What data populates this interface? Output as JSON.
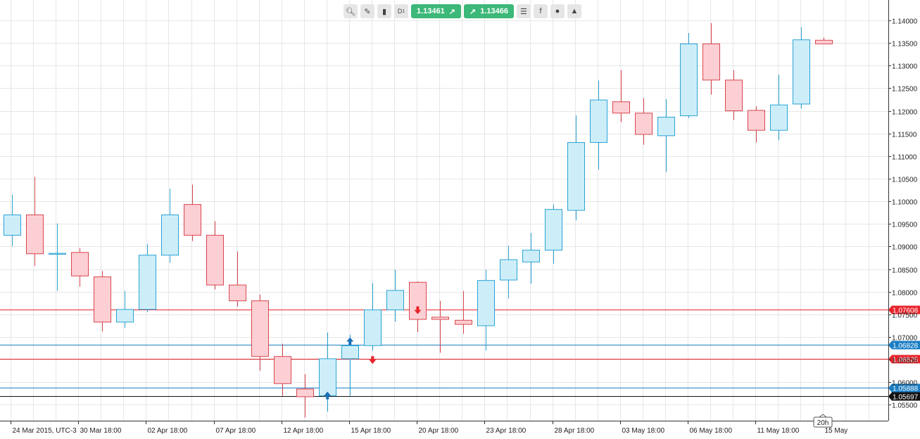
{
  "toolbar": {
    "timeframe": "D",
    "timeframe_sub": "1",
    "bid_price": "1.13461",
    "ask_price": "1.13466",
    "arrow_glyph": "↗",
    "icons": [
      "zoom-icon",
      "chart-settings-icon",
      "candles-icon",
      "timeframe-icon",
      "bid-button",
      "ask-button",
      "order-list-icon",
      "facebook-icon",
      "palette-icon",
      "trader-icon"
    ]
  },
  "chart_data": {
    "type": "candlestick",
    "x_labels": [
      "24 Mar 2015, UTC-3",
      "30 Mar 18:00",
      "02 Apr 18:00",
      "07 Apr 18:00",
      "12 Apr 18:00",
      "15 Apr 18:00",
      "20 Apr 18:00",
      "23 Apr 18:00",
      "28 Apr 18:00",
      "03 May 18:00",
      "06 May 18:00",
      "11 May 18:00",
      "15 May"
    ],
    "y_ticks": [
      "1.05500",
      "1.06000",
      "1.06500",
      "1.07000",
      "1.07500",
      "1.08000",
      "1.08500",
      "1.09000",
      "1.09500",
      "1.10000",
      "1.10500",
      "1.11000",
      "1.11500",
      "1.12000",
      "1.12500",
      "1.13000",
      "1.13500",
      "1.14000"
    ],
    "ylim": [
      1.0515,
      1.1445
    ],
    "candles": [
      {
        "o": 1.0925,
        "h": 1.1015,
        "l": 1.0901,
        "c": 1.097
      },
      {
        "o": 1.097,
        "h": 1.1054,
        "l": 1.0857,
        "c": 1.0884
      },
      {
        "o": 1.0883,
        "h": 1.0951,
        "l": 1.0802,
        "c": 1.0885
      },
      {
        "o": 1.0887,
        "h": 1.0897,
        "l": 1.0811,
        "c": 1.0835
      },
      {
        "o": 1.0833,
        "h": 1.0846,
        "l": 1.0712,
        "c": 1.0733
      },
      {
        "o": 1.0733,
        "h": 1.0802,
        "l": 1.072,
        "c": 1.0761
      },
      {
        "o": 1.0761,
        "h": 1.0906,
        "l": 1.0755,
        "c": 1.0881
      },
      {
        "o": 1.0881,
        "h": 1.1028,
        "l": 1.0864,
        "c": 1.097
      },
      {
        "o": 1.0993,
        "h": 1.1037,
        "l": 1.0912,
        "c": 1.0925
      },
      {
        "o": 1.0925,
        "h": 1.0956,
        "l": 1.0805,
        "c": 1.0815
      },
      {
        "o": 1.0815,
        "h": 1.0889,
        "l": 1.0767,
        "c": 1.078
      },
      {
        "o": 1.078,
        "h": 1.0794,
        "l": 1.0626,
        "c": 1.0657
      },
      {
        "o": 1.0657,
        "h": 1.0685,
        "l": 1.057,
        "c": 1.0597
      },
      {
        "o": 1.0585,
        "h": 1.0618,
        "l": 1.0522,
        "c": 1.0568
      },
      {
        "o": 1.057,
        "h": 1.071,
        "l": 1.0535,
        "c": 1.0652
      },
      {
        "o": 1.0652,
        "h": 1.0705,
        "l": 1.057,
        "c": 1.0681
      },
      {
        "o": 1.0681,
        "h": 1.0819,
        "l": 1.067,
        "c": 1.076
      },
      {
        "o": 1.076,
        "h": 1.0849,
        "l": 1.0734,
        "c": 1.0803
      },
      {
        "o": 1.0821,
        "h": 1.0823,
        "l": 1.0711,
        "c": 1.0739
      },
      {
        "o": 1.0744,
        "h": 1.078,
        "l": 1.0665,
        "c": 1.0739
      },
      {
        "o": 1.0737,
        "h": 1.0802,
        "l": 1.0707,
        "c": 1.0728
      },
      {
        "o": 1.0725,
        "h": 1.0849,
        "l": 1.067,
        "c": 1.0825
      },
      {
        "o": 1.0826,
        "h": 1.0902,
        "l": 1.0785,
        "c": 1.0871
      },
      {
        "o": 1.0866,
        "h": 1.093,
        "l": 1.0818,
        "c": 1.0892
      },
      {
        "o": 1.0892,
        "h": 1.0993,
        "l": 1.0862,
        "c": 1.0982
      },
      {
        "o": 1.098,
        "h": 1.119,
        "l": 1.0958,
        "c": 1.113
      },
      {
        "o": 1.113,
        "h": 1.1267,
        "l": 1.107,
        "c": 1.1224
      },
      {
        "o": 1.122,
        "h": 1.129,
        "l": 1.1175,
        "c": 1.1195
      },
      {
        "o": 1.1195,
        "h": 1.1228,
        "l": 1.1125,
        "c": 1.1148
      },
      {
        "o": 1.1145,
        "h": 1.1226,
        "l": 1.1065,
        "c": 1.1186
      },
      {
        "o": 1.1189,
        "h": 1.1372,
        "l": 1.1184,
        "c": 1.1348
      },
      {
        "o": 1.1348,
        "h": 1.1394,
        "l": 1.1236,
        "c": 1.1268
      },
      {
        "o": 1.1268,
        "h": 1.129,
        "l": 1.118,
        "c": 1.12
      },
      {
        "o": 1.1201,
        "h": 1.121,
        "l": 1.113,
        "c": 1.1157
      },
      {
        "o": 1.1157,
        "h": 1.128,
        "l": 1.1135,
        "c": 1.1213
      },
      {
        "o": 1.1215,
        "h": 1.1385,
        "l": 1.1205,
        "c": 1.1357
      },
      {
        "o": 1.1356,
        "h": 1.1362,
        "l": 1.1347,
        "c": 1.1348
      }
    ],
    "horizontal_lines": [
      {
        "price": 1.07608,
        "label": "1.07608",
        "color": "#e8242b"
      },
      {
        "price": 1.06828,
        "label": "1.06828",
        "color": "#1a7dc4"
      },
      {
        "price": 1.06525,
        "label": "1.06525",
        "color": "#e8242b"
      },
      {
        "price": 1.05888,
        "label": "1.05888",
        "color": "#1a7dc4"
      },
      {
        "price": 1.05697,
        "label": "1.05697",
        "color": "#111111"
      }
    ],
    "signals": [
      {
        "index": 14,
        "type": "buy",
        "price": 1.057
      },
      {
        "index": 15,
        "type": "buy",
        "price": 1.069
      },
      {
        "index": 16,
        "type": "sell",
        "price": 1.065
      },
      {
        "index": 18,
        "type": "sell",
        "price": 1.076
      }
    ],
    "timeframe_tag": "20h",
    "grid": true,
    "colors": {
      "bull_fill": "#cdeef9",
      "bull_stroke": "#2aa3d4",
      "bear_fill": "#fccfd4",
      "bear_stroke": "#d9464f",
      "grid": "#e6e6e6",
      "buy_arrow": "#1a6fb8",
      "sell_arrow": "#e8242b"
    }
  }
}
